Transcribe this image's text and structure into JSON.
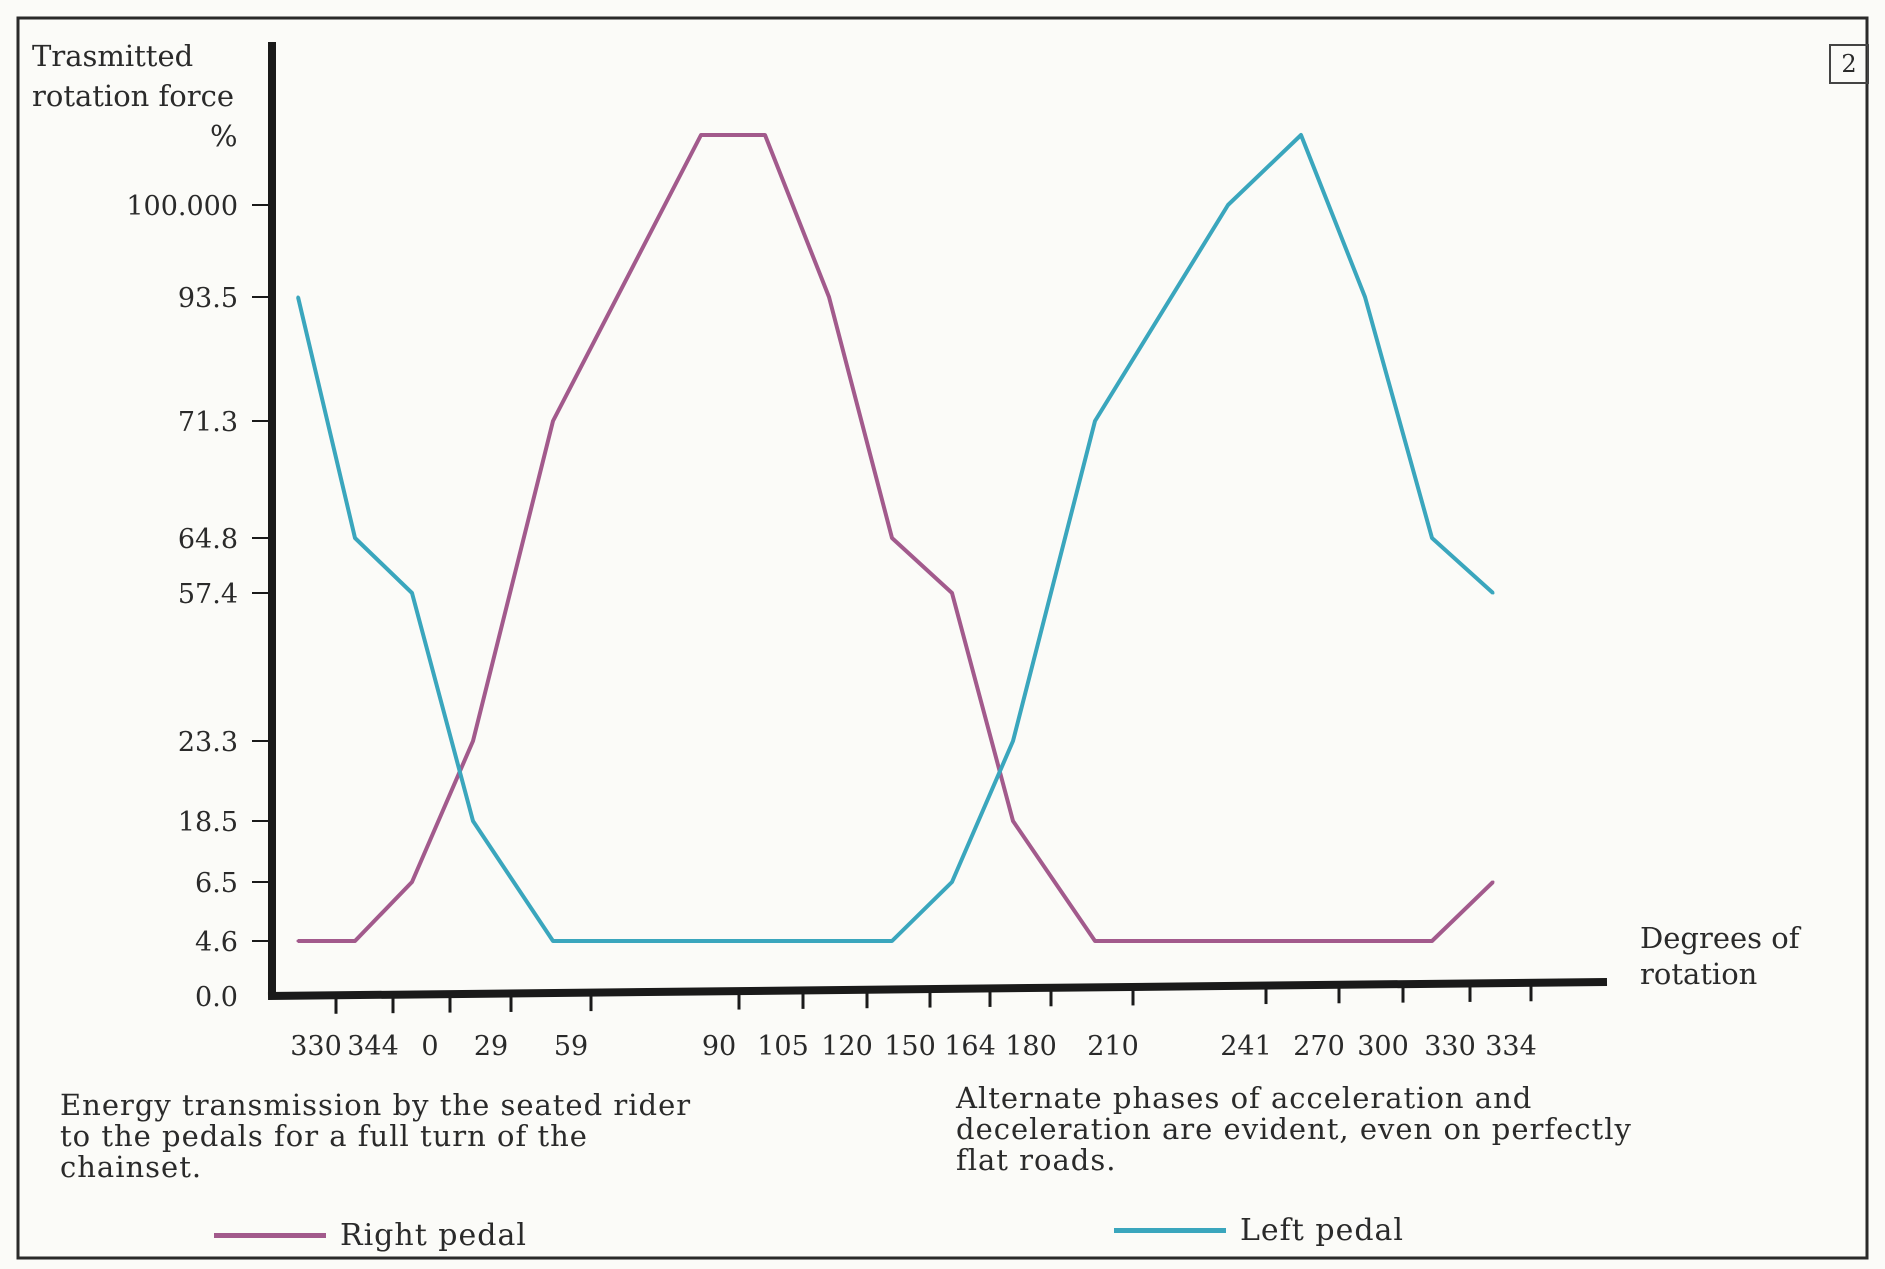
{
  "page_number": "2",
  "captions": {
    "left": "Energy transmission by the seated rider\nto the pedals for a full turn of the\nchainset.",
    "right": "Alternate phases of acceleration and\ndeceleration are evident, even on perfectly\nflat roads."
  },
  "legend": {
    "right_label": "Right pedal",
    "left_label": "Left pedal"
  },
  "colors": {
    "right_pedal": "#a25a8c",
    "left_pedal": "#3aa6bd",
    "axis": "#1a1a1a"
  },
  "chart_data": {
    "type": "line",
    "ylabel": "Trasmitted\nrotation force\n%",
    "xlabel": "Degrees of\nrotation",
    "y_ticks": [
      "0.0",
      "4.6",
      "6.5",
      "18.5",
      "23.3",
      "57.4",
      "64.8",
      "71.3",
      "93.5",
      "100.000"
    ],
    "x_ticks": [
      "330",
      "344",
      "0",
      "29",
      "59",
      "90",
      "105",
      "120",
      "150",
      "164",
      "180",
      "210",
      "241",
      "270",
      "300",
      "330",
      "334"
    ],
    "grid": false,
    "legend_placement": "bottom",
    "series": [
      {
        "name": "Right pedal",
        "color_key": "right_pedal",
        "points": [
          {
            "x": "330",
            "y": 4.6
          },
          {
            "x": "344",
            "y": 4.6
          },
          {
            "x": "0",
            "y": 6.5
          },
          {
            "x": "29",
            "y": 23.3
          },
          {
            "x": "59",
            "y": 71.3
          },
          {
            "x": "90",
            "y": 108
          },
          {
            "x": "105",
            "y": 108
          },
          {
            "x": "120",
            "y": 93.5
          },
          {
            "x": "150",
            "y": 64.8
          },
          {
            "x": "164",
            "y": 57.4
          },
          {
            "x": "180",
            "y": 18.5
          },
          {
            "x": "210",
            "y": 4.6
          },
          {
            "x": "241",
            "y": 4.6
          },
          {
            "x": "270",
            "y": 4.6
          },
          {
            "x": "300",
            "y": 4.6
          },
          {
            "x": "330",
            "y": 4.6
          },
          {
            "x": "334",
            "y": 6.5
          }
        ]
      },
      {
        "name": "Left pedal",
        "color_key": "left_pedal",
        "points": [
          {
            "x": "330",
            "y": 93.5
          },
          {
            "x": "344",
            "y": 64.8
          },
          {
            "x": "0",
            "y": 57.4
          },
          {
            "x": "29",
            "y": 18.5
          },
          {
            "x": "59",
            "y": 4.6
          },
          {
            "x": "90",
            "y": 4.6
          },
          {
            "x": "105",
            "y": 4.6
          },
          {
            "x": "120",
            "y": 4.6
          },
          {
            "x": "150",
            "y": 4.6
          },
          {
            "x": "164",
            "y": 6.5
          },
          {
            "x": "180",
            "y": 23.3
          },
          {
            "x": "210",
            "y": 71.3
          },
          {
            "x": "241",
            "y": 100.0
          },
          {
            "x": "270",
            "y": 108
          },
          {
            "x": "300",
            "y": 93.5
          },
          {
            "x": "330",
            "y": 64.8
          },
          {
            "x": "334",
            "y": 57.4
          }
        ]
      }
    ]
  }
}
